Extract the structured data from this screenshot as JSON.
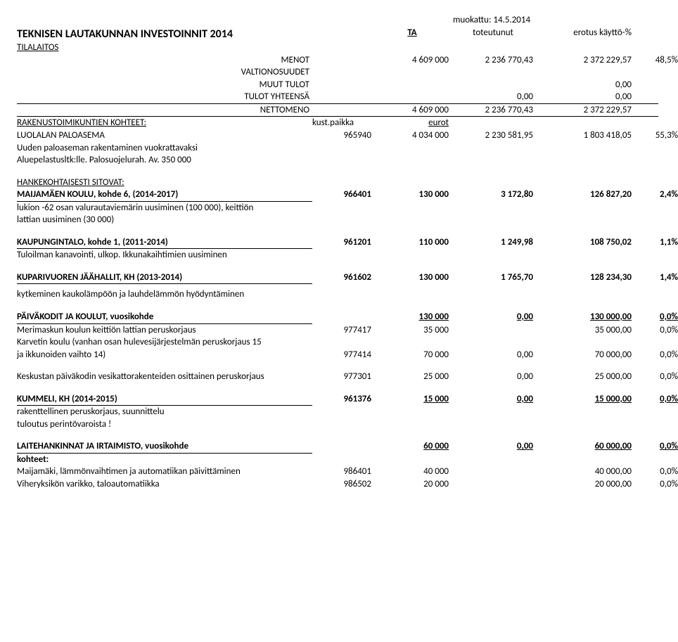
{
  "header": {
    "modified_label": "muokattu: 14.5.2014"
  },
  "title": "TEKNISEN LAUTAKUNNAN INVESTOINNIT 2014",
  "cols": {
    "ta": "TA",
    "tot": "toteutunut",
    "erotus": "erotus",
    "kaytto": "käyttö-%"
  },
  "tilalaitos": {
    "label": "TILALAITOS",
    "menot": {
      "label": "MENOT",
      "ta": "4 609 000",
      "tot": "2 236 770,43",
      "erotus": "2 372 229,57",
      "pct": "48,5%"
    },
    "valtionosuudet": {
      "label": "VALTIONOSUUDET"
    },
    "muut_tulot": {
      "label": "MUUT TULOT",
      "erotus": "0,00"
    },
    "tulot_yht": {
      "label": "TULOT YHTEENSÄ",
      "tot": "0,00",
      "erotus": "0,00"
    },
    "nettomeno": {
      "label": "NETTOMENO",
      "ta": "4 609 000",
      "tot": "2 236 770,43",
      "erotus": "2 372 229,57"
    }
  },
  "rakenus": {
    "label": "RAKENUSTOIMIKUNTIEN KOHTEET:",
    "kust": "kust.paikka",
    "eurot": "eurot"
  },
  "luolalan": {
    "label": "LUOLALAN PALOASEMA",
    "a": "965940",
    "b": "4 034 000",
    "c": "2 230 581,95",
    "d": "1 803 418,05",
    "e": "55,3%",
    "desc1": "Uuden paloaseman rakentaminen vuokrattavaksi",
    "desc2": "Aluepelastusltk:lle. Palosuojelurah. Av. 350 000"
  },
  "hanke": {
    "label": "HANKEKOHTAISESTI SITOVAT:"
  },
  "maijamaen": {
    "label": "MAIJAMÄEN KOULU, kohde 6, (2014-2017)",
    "a": "966401",
    "b": "130 000",
    "c": "3 172,80",
    "d": "126 827,20",
    "e": "2,4%",
    "desc1": "lukion -62 osan valurautaviemärin uusiminen (100 000), keittiön",
    "desc2": "lattian uusiminen (30 000)"
  },
  "kaupungintalo": {
    "label": "KAUPUNGINTALO, kohde 1, (2011-2014)",
    "a": "961201",
    "b": "110 000",
    "c": "1 249,98",
    "d": "108 750,02",
    "e": "1,1%",
    "desc": "Tuloilman kanavointi, ulkop. Ikkunakaihtimien uusiminen"
  },
  "kuparivuoren": {
    "label": "KUPARIVUOREN JÄÄHALLIT, KH (2013-2014)",
    "a": "961602",
    "b": "130 000",
    "c": "1 765,70",
    "d": "128 234,30",
    "e": "1,4%",
    "desc": "kytkeminen kaukolämpöön ja lauhdelämmön hyödyntäminen"
  },
  "paivakodit": {
    "label": "PÄIVÄKODIT JA KOULUT, vuosikohde",
    "b": "130 000",
    "c": "0,00",
    "d": "130 000,00",
    "e": "0,0%"
  },
  "merimaskun": {
    "label": "Merimaskun koulun keittiön lattian peruskorjaus",
    "a": "977417",
    "b": "35 000",
    "d": "35 000,00",
    "e": "0,0%"
  },
  "karvetin": {
    "label1": "Karvetin koulu (vanhan osan hulevesijärjestelmän peruskorjaus 15",
    "label2": "ja ikkunoiden vaihto 14)",
    "a": "977414",
    "b": "70 000",
    "c": "0,00",
    "d": "70 000,00",
    "e": "0,0%"
  },
  "keskustan": {
    "label": "Keskustan päiväkodin vesikattorakenteiden osittainen peruskorjaus",
    "a": "977301",
    "b": "25 000",
    "c": "0,00",
    "d": "25 000,00",
    "e": "0,0%"
  },
  "kummeli": {
    "label": "KUMMELI, KH (2014-2015)",
    "a": "961376",
    "b": "15 000",
    "c": "0,00",
    "d": "15 000,00",
    "e": "0,0%",
    "desc1": "rakenttellinen peruskorjaus, suunnittelu",
    "desc2": "tuloutus perintövaroista !"
  },
  "laitehankinnat": {
    "label": "LAITEHANKINNAT JA IRTAIMISTO, vuosikohde",
    "b": "60 000",
    "c": "0,00",
    "d": "60 000,00",
    "e": "0,0%",
    "kohteet": "kohteet:"
  },
  "maijamaki2": {
    "label": "Maijamäki, lämmönvaihtimen ja automatiikan päivittäminen",
    "a": "986401",
    "b": "40 000",
    "d": "40 000,00",
    "e": "0,0%"
  },
  "viheryksikon": {
    "label": "Viheryksikön varikko, taloautomatiikka",
    "a": "986502",
    "b": "20 000",
    "d": "20 000,00",
    "e": "0,0%"
  },
  "style": {
    "background": "#ffffff",
    "text_color": "#000000",
    "font": "Calibri"
  }
}
